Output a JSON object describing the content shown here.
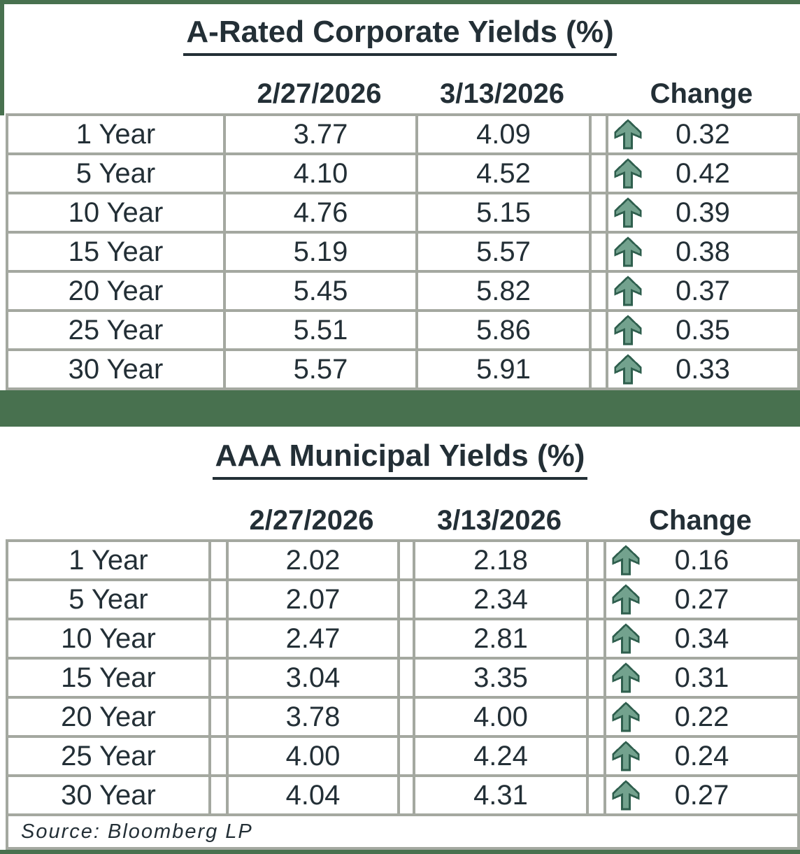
{
  "chart_data": [
    {
      "type": "table",
      "title": "A-Rated Corporate Yields (%)",
      "column_headers": [
        "2/27/2026",
        "3/13/2026",
        "Change"
      ],
      "rows": [
        {
          "label": "1 Year",
          "start": "3.77",
          "end": "4.09",
          "change": "0.32",
          "direction": "up"
        },
        {
          "label": "5 Year",
          "start": "4.10",
          "end": "4.52",
          "change": "0.42",
          "direction": "up"
        },
        {
          "label": "10 Year",
          "start": "4.76",
          "end": "5.15",
          "change": "0.39",
          "direction": "up"
        },
        {
          "label": "15 Year",
          "start": "5.19",
          "end": "5.57",
          "change": "0.38",
          "direction": "up"
        },
        {
          "label": "20 Year",
          "start": "5.45",
          "end": "5.82",
          "change": "0.37",
          "direction": "up"
        },
        {
          "label": "25 Year",
          "start": "5.51",
          "end": "5.86",
          "change": "0.35",
          "direction": "up"
        },
        {
          "label": "30 Year",
          "start": "5.57",
          "end": "5.91",
          "change": "0.33",
          "direction": "up"
        }
      ]
    },
    {
      "type": "table",
      "title": "AAA Municipal Yields (%)",
      "column_headers": [
        "2/27/2026",
        "3/13/2026",
        "Change"
      ],
      "rows": [
        {
          "label": "1 Year",
          "start": "2.02",
          "end": "2.18",
          "change": "0.16",
          "direction": "up"
        },
        {
          "label": "5 Year",
          "start": "2.07",
          "end": "2.34",
          "change": "0.27",
          "direction": "up"
        },
        {
          "label": "10 Year",
          "start": "2.47",
          "end": "2.81",
          "change": "0.34",
          "direction": "up"
        },
        {
          "label": "15 Year",
          "start": "3.04",
          "end": "3.35",
          "change": "0.31",
          "direction": "up"
        },
        {
          "label": "20 Year",
          "start": "3.78",
          "end": "4.00",
          "change": "0.22",
          "direction": "up"
        },
        {
          "label": "25 Year",
          "start": "4.00",
          "end": "4.24",
          "change": "0.24",
          "direction": "up"
        },
        {
          "label": "30 Year",
          "start": "4.04",
          "end": "4.31",
          "change": "0.27",
          "direction": "up"
        }
      ]
    }
  ],
  "source_note": "Source: Bloomberg LP",
  "colors": {
    "accent_green": "#48714f",
    "border_gray": "#a4a8a0",
    "text": "#232f36",
    "arrow_fill": "#73a28e",
    "arrow_outline": "#2f5f4e"
  }
}
